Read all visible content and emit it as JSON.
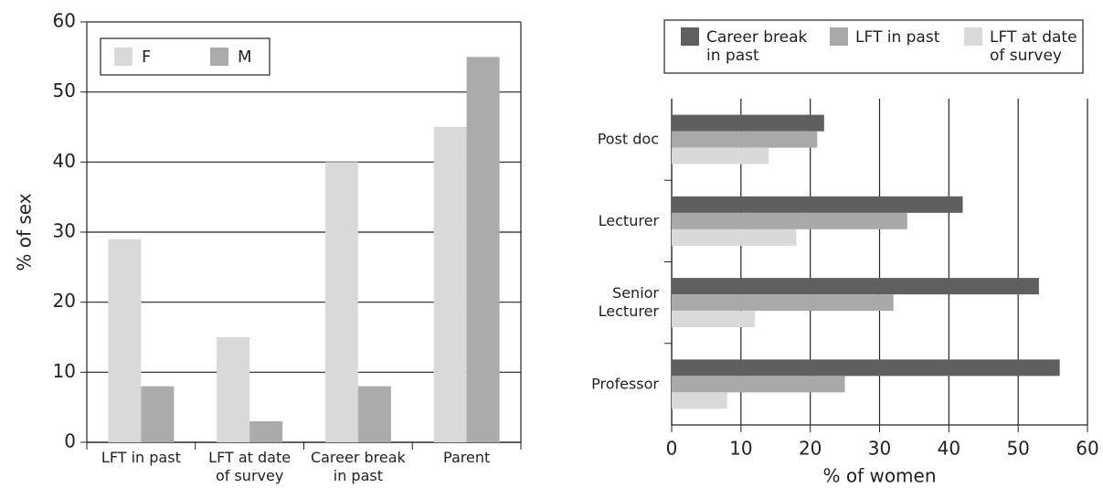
{
  "chart_data": [
    {
      "type": "bar",
      "ylabel": "% of sex",
      "categories": [
        "LFT in past",
        "LFT at date of survey",
        "Career break in past",
        "Parent"
      ],
      "series": [
        {
          "name": "F",
          "color": "#d9d9d9",
          "values": [
            29,
            15,
            40,
            45
          ]
        },
        {
          "name": "M",
          "color": "#ababab",
          "values": [
            8,
            3,
            8,
            55
          ]
        }
      ],
      "ylim": [
        0,
        60
      ],
      "yticks": [
        0,
        10,
        20,
        30,
        40,
        50,
        60
      ],
      "grid": true,
      "legend": "upper left"
    },
    {
      "type": "barh",
      "xlabel": "% of women",
      "categories": [
        "Post doc",
        "Lecturer",
        "Senior Lecturer",
        "Professor"
      ],
      "series": [
        {
          "name": "Career break in past",
          "color": "#5f5f5f",
          "values": [
            22,
            42,
            53,
            56
          ]
        },
        {
          "name": "LFT in past",
          "color": "#a9a9a9",
          "values": [
            21,
            34,
            32,
            25
          ]
        },
        {
          "name": "LFT at date of survey",
          "color": "#d9d9d9",
          "values": [
            14,
            18,
            12,
            8
          ]
        }
      ],
      "xlim": [
        0,
        60
      ],
      "xticks": [
        0,
        10,
        20,
        30,
        40,
        50,
        60
      ],
      "grid": true,
      "legend": "top"
    }
  ]
}
